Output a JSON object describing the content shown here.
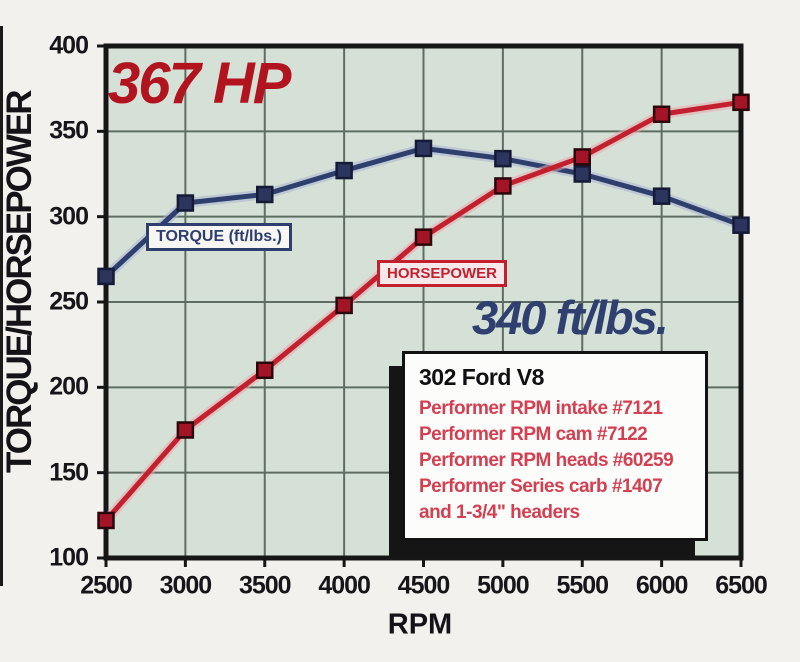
{
  "axes": {
    "y_title": "TORQUE/HORSEPOWER",
    "x_title": "RPM",
    "y_ticks": [
      400,
      350,
      300,
      250,
      200,
      150,
      100
    ],
    "x_ticks": [
      2500,
      3000,
      3500,
      4000,
      4500,
      5000,
      5500,
      6000,
      6500
    ]
  },
  "annotations": {
    "peak_hp": "367 HP",
    "peak_torque": "340 ft/lbs."
  },
  "legends": {
    "torque": "TORQUE (ft/lbs.)",
    "horsepower": "HORSEPOWER"
  },
  "info_box": {
    "title": "302 Ford V8",
    "lines": [
      "Performer RPM intake #7121",
      "Performer RPM cam #7122",
      "Performer RPM heads #60259",
      "Performer Series carb #1407",
      "and 1-3/4\" headers"
    ]
  },
  "colors": {
    "plot_background": "#d5e1d6",
    "gridline": "#5e6d64",
    "border": "#161616",
    "peak_hp_text": "#b2141f",
    "peak_torque_text": "#2f4070",
    "info_text_red": "#d43f51"
  },
  "chart_data": {
    "type": "line",
    "title": "367 HP",
    "xlabel": "RPM",
    "ylabel": "TORQUE/HORSEPOWER",
    "x": [
      2500,
      3000,
      3500,
      4000,
      4500,
      5000,
      5500,
      6000,
      6500
    ],
    "series": [
      {
        "name": "TORQUE (ft/lbs.)",
        "values": [
          265,
          308,
          313,
          327,
          340,
          334,
          325,
          312,
          295
        ],
        "color": "#2e3f6e",
        "halo": "#a9b4d4",
        "marker_fill": "#2b355e",
        "marker_stroke": "#151b36"
      },
      {
        "name": "HORSEPOWER",
        "values": [
          122,
          175,
          210,
          248,
          288,
          318,
          335,
          360,
          367
        ],
        "color": "#c2202e",
        "halo": "#e9a7ae",
        "marker_fill": "#a31426",
        "marker_stroke": "#2a070c"
      }
    ],
    "xlim": [
      2500,
      6500
    ],
    "ylim": [
      100,
      400
    ],
    "grid": true,
    "legend_position": "inside-plot",
    "annotations": [
      "367 HP @ 6500 RPM",
      "340 ft/lbs. peak torque"
    ]
  }
}
